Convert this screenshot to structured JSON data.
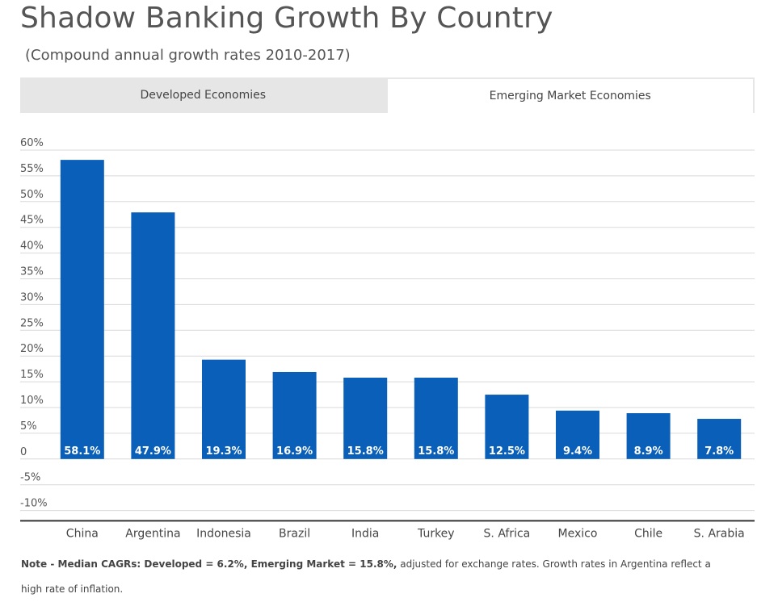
{
  "title": "Shadow Banking Growth By Country",
  "subtitle": "(Compound annual growth rates 2010-2017)",
  "tabs": [
    {
      "label": "Developed Economies",
      "active": false
    },
    {
      "label": "Emerging Market Economies",
      "active": true
    }
  ],
  "chart_data": {
    "type": "bar",
    "categories": [
      "China",
      "Argentina",
      "Indonesia",
      "Brazil",
      "India",
      "Turkey",
      "S. Africa",
      "Mexico",
      "Chile",
      "S. Arabia"
    ],
    "values": [
      58.1,
      47.9,
      19.3,
      16.9,
      15.8,
      15.8,
      12.5,
      9.4,
      8.9,
      7.8
    ],
    "data_labels": [
      "58.1%",
      "47.9%",
      "19.3%",
      "16.9%",
      "15.8%",
      "15.8%",
      "12.5%",
      "9.4%",
      "8.9%",
      "7.8%"
    ],
    "y_ticks": [
      60,
      55,
      50,
      45,
      40,
      35,
      30,
      25,
      20,
      15,
      10,
      5,
      0,
      -5,
      -10
    ],
    "y_tick_labels": [
      "60%",
      "55%",
      "50%",
      "45%",
      "40%",
      "35%",
      "30%",
      "25%",
      "20%",
      "15%",
      "10%",
      "5%",
      "0",
      "-5%",
      "-10%"
    ],
    "ylim": [
      -12,
      60
    ],
    "grid": true,
    "bar_color": "#0a5fb8",
    "data_label_color": "#ffffff"
  },
  "note": {
    "bold": "Note - Median CAGRs: Developed = 6.2%, Emerging Market = 15.8%,",
    "text": " adjusted for exchange rates.  Growth rates in Argentina reflect a high rate of inflation."
  }
}
